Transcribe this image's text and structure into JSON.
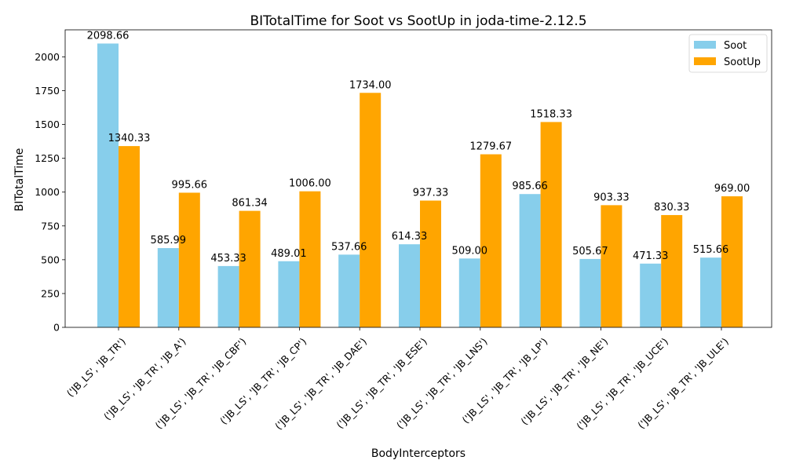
{
  "chart_data": {
    "type": "bar",
    "title": "BITotalTime for Soot vs SootUp in joda-time-2.12.5",
    "xlabel": "BodyInterceptors",
    "ylabel": "BITotalTime",
    "ylim": [
      0,
      2200
    ],
    "yticks": [
      0,
      250,
      500,
      750,
      1000,
      1250,
      1500,
      1750,
      2000
    ],
    "grid": false,
    "legend_position": "top-right",
    "categories": [
      "('JB_LS', 'JB_TR')",
      "('JB_LS', 'JB_TR', 'JB_A')",
      "('JB_LS', 'JB_TR', 'JB_CBF')",
      "('JB_LS', 'JB_TR', 'JB_CP')",
      "('JB_LS', 'JB_TR', 'JB_DAE')",
      "('JB_LS', 'JB_TR', 'JB_ESE')",
      "('JB_LS', 'JB_TR', 'JB_LNS')",
      "('JB_LS', 'JB_TR', 'JB_LP')",
      "('JB_LS', 'JB_TR', 'JB_NE')",
      "('JB_LS', 'JB_TR', 'JB_UCE')",
      "('JB_LS', 'JB_TR', 'JB_ULE')"
    ],
    "series": [
      {
        "name": "Soot",
        "color": "#87ceeb",
        "values": [
          2098.66,
          585.99,
          453.33,
          489.01,
          537.66,
          614.33,
          509.0,
          985.66,
          505.67,
          471.33,
          515.66
        ],
        "labels": [
          "2098.66",
          "585.99",
          "453.33",
          "489.01",
          "537.66",
          "614.33",
          "509.00",
          "985.66",
          "505.67",
          "471.33",
          "515.66"
        ]
      },
      {
        "name": "SootUp",
        "color": "#ffa500",
        "values": [
          1340.33,
          995.66,
          861.34,
          1006.0,
          1734.0,
          937.33,
          1279.67,
          1518.33,
          903.33,
          830.33,
          969.0
        ],
        "labels": [
          "1340.33",
          "995.66",
          "861.34",
          "1006.00",
          "1734.00",
          "937.33",
          "1279.67",
          "1518.33",
          "903.33",
          "830.33",
          "969.00"
        ]
      }
    ]
  }
}
